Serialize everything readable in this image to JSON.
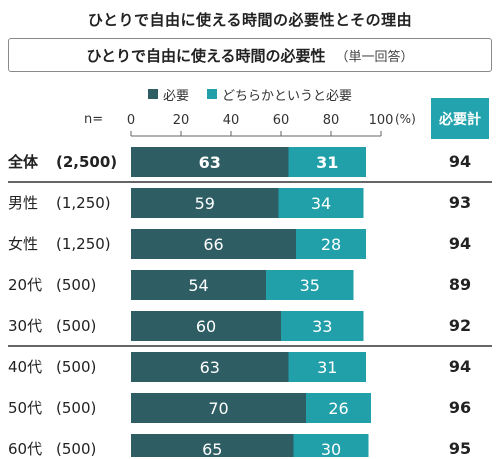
{
  "title": "ひとりで自由に使える時間の必要性とその理由",
  "subtitle": "ひとりで自由に使える時間の必要性",
  "subtitle_note": "（単一回答）",
  "n_label": "n=",
  "unit_label": "(%)",
  "total_header": "必要計",
  "colors": {
    "necessary": "#2e5d63",
    "somewhat": "#22a0aa",
    "header_bg": "#23a3ad"
  },
  "chart_data": {
    "type": "bar",
    "orientation": "horizontal",
    "stacked": true,
    "x_ticks": [
      "0",
      "20",
      "40",
      "60",
      "80",
      "100"
    ],
    "xlim": [
      0,
      100
    ],
    "legend": [
      "必要",
      "どちらかというと必要"
    ],
    "categories": [
      "全体",
      "男性",
      "女性",
      "20代",
      "30代",
      "40代",
      "50代",
      "60代"
    ],
    "n": [
      "(2,500)",
      "(1,250)",
      "(1,250)",
      "(500)",
      "(500)",
      "(500)",
      "(500)",
      "(500)"
    ],
    "series": [
      {
        "name": "必要",
        "values": [
          63,
          59,
          66,
          54,
          60,
          63,
          70,
          65
        ]
      },
      {
        "name": "どちらかというと必要",
        "values": [
          31,
          34,
          28,
          35,
          33,
          31,
          26,
          30
        ]
      }
    ],
    "totals_label": "必要計",
    "totals": [
      94,
      93,
      94,
      89,
      92,
      94,
      96,
      95
    ]
  }
}
